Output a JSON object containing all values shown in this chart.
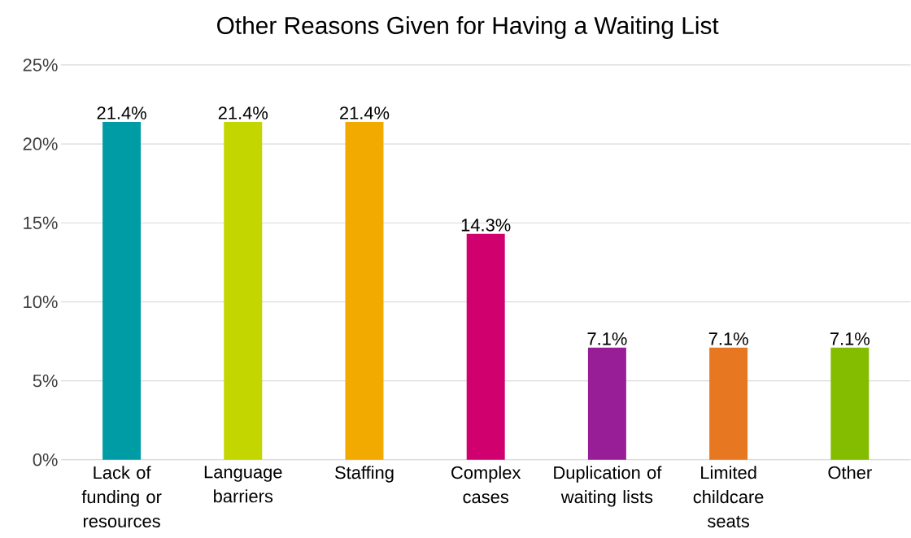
{
  "chart_data": {
    "type": "bar",
    "title": "Other Reasons Given for Having a Waiting List",
    "categories": [
      "Lack of funding or resources",
      "Language barriers",
      "Staffing",
      "Complex cases",
      "Duplication of waiting lists",
      "Limited childcare seats",
      "Other"
    ],
    "values": [
      21.4,
      21.4,
      21.4,
      14.3,
      7.1,
      7.1,
      7.1
    ],
    "value_labels": [
      "21.4%",
      "21.4%",
      "21.4%",
      "14.3%",
      "7.1%",
      "7.1%",
      "7.1%"
    ],
    "colors": [
      "#009ca6",
      "#c4d600",
      "#f2a900",
      "#d0006f",
      "#981e97",
      "#e87722",
      "#84bd00"
    ],
    "ylim": [
      0,
      25
    ],
    "yticks": [
      {
        "value": 0,
        "label": "0%"
      },
      {
        "value": 5,
        "label": "5%"
      },
      {
        "value": 10,
        "label": "10%"
      },
      {
        "value": 15,
        "label": "15%"
      },
      {
        "value": 20,
        "label": "20%"
      },
      {
        "value": 25,
        "label": "25%"
      }
    ],
    "grid": "y"
  }
}
